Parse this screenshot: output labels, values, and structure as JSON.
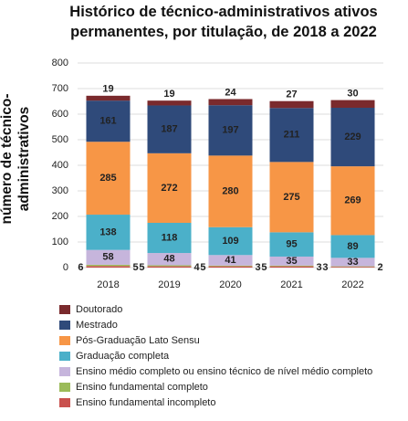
{
  "chart_data": {
    "type": "stacked_bar",
    "title": "Histórico de técnico-administrativos ativos permanentes, por titulação, de 2018 a 2022",
    "y_label": "número de técnico-administrativos",
    "categories": [
      "2018",
      "2019",
      "2020",
      "2021",
      "2022"
    ],
    "ylim": [
      0,
      800
    ],
    "yticks": [
      0,
      100,
      200,
      300,
      400,
      500,
      600,
      700,
      800
    ],
    "grid": true,
    "series": [
      {
        "name": "Ensino fundamental incompleto",
        "color": "#c9514e",
        "values": [
          6,
          5,
          5,
          5,
          3
        ]
      },
      {
        "name": "Ensino fundamental completo",
        "color": "#9bbb59",
        "values": [
          5,
          4,
          3,
          3,
          2
        ]
      },
      {
        "name": "Ensino médio completo ou ensino técnico de nível médio completo",
        "color": "#c6b5dc",
        "values": [
          58,
          48,
          41,
          35,
          33
        ]
      },
      {
        "name": "Graduação completa",
        "color": "#4bb0c9",
        "values": [
          138,
          118,
          109,
          95,
          89
        ]
      },
      {
        "name": "Pós-Graduação Lato Sensu",
        "color": "#f79646",
        "values": [
          285,
          272,
          280,
          275,
          269
        ]
      },
      {
        "name": "Mestrado",
        "color": "#2f4a7a",
        "values": [
          161,
          187,
          197,
          211,
          229
        ]
      },
      {
        "name": "Doutorado",
        "color": "#7a2a2d",
        "values": [
          19,
          19,
          24,
          27,
          30
        ]
      }
    ]
  }
}
